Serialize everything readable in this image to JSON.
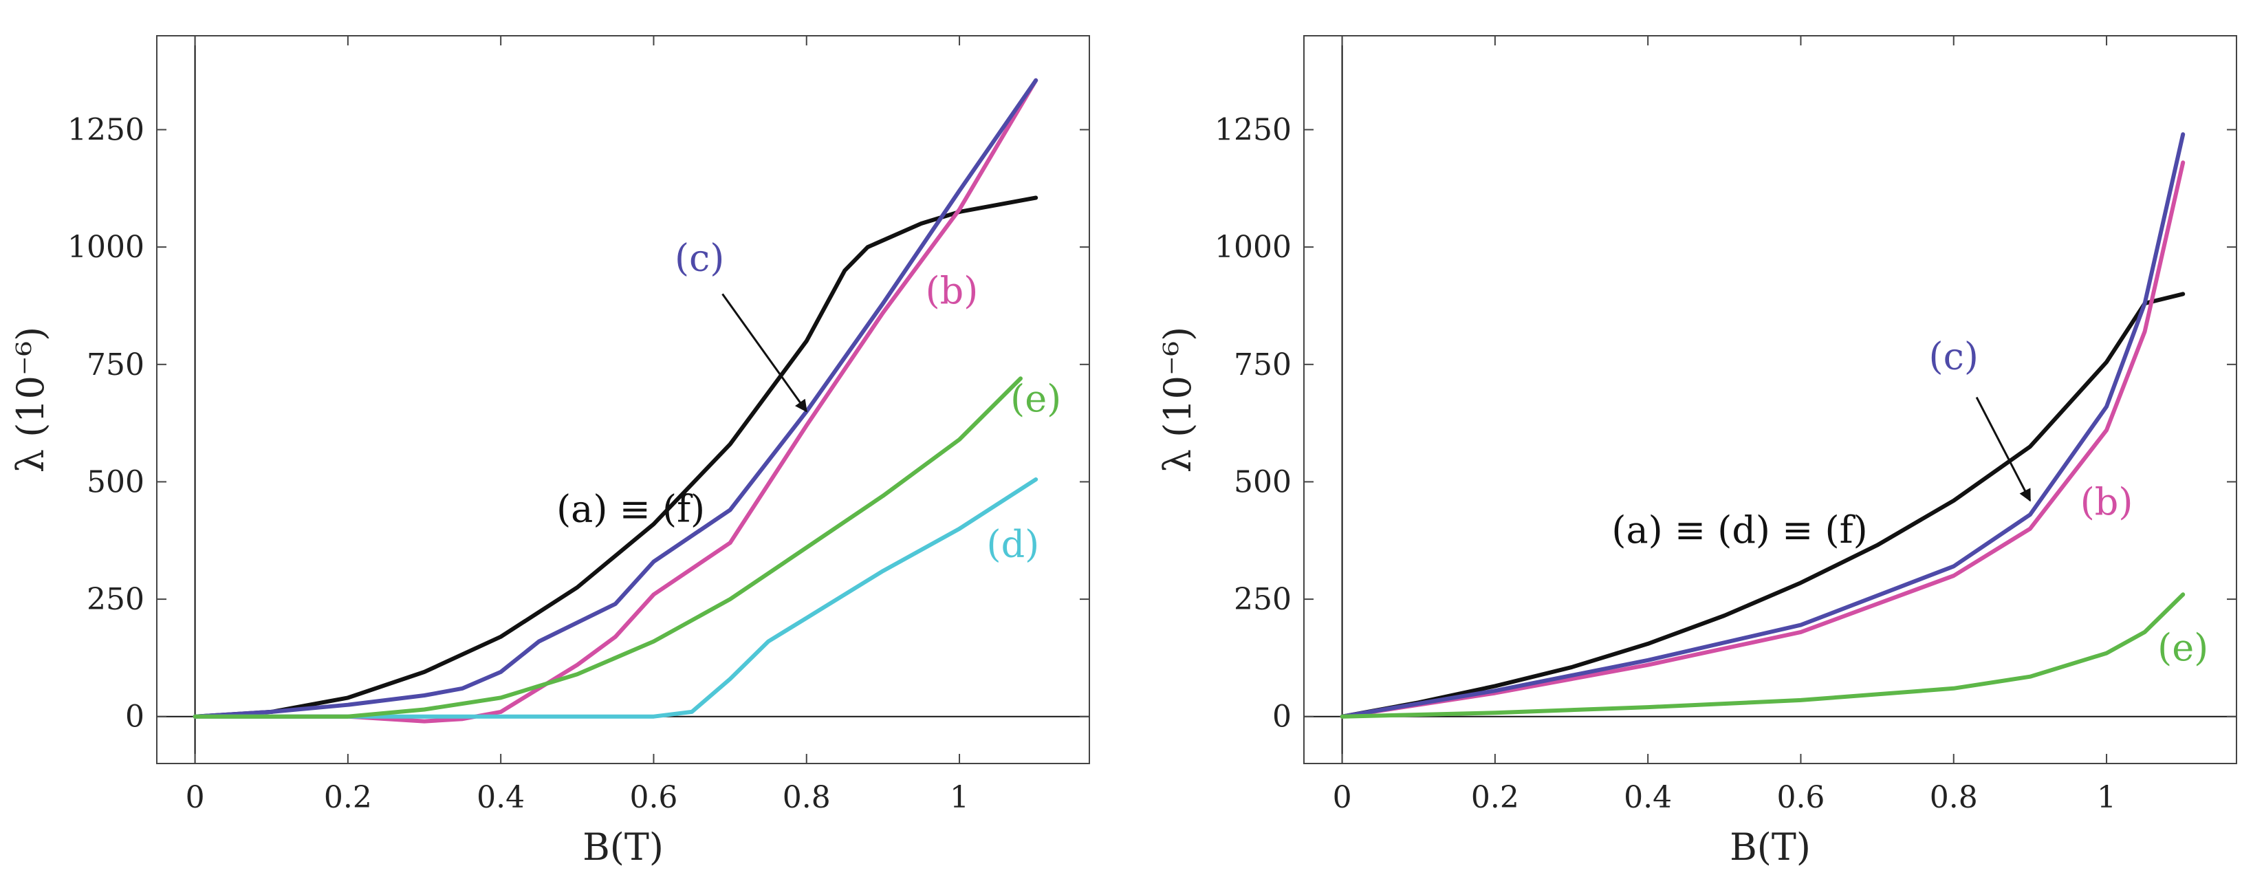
{
  "chart_data": [
    {
      "type": "line",
      "xlabel": "B(T)",
      "ylabel": "λ (10⁻⁶)",
      "xlim": [
        -0.05,
        1.17
      ],
      "ylim": [
        -100,
        1450
      ],
      "xticks": [
        0,
        0.2,
        0.4,
        0.6,
        0.8,
        1
      ],
      "xtick_labels": [
        "0",
        "0.2",
        "0.4",
        "0.6",
        "0.8",
        "1"
      ],
      "yticks": [
        0,
        250,
        500,
        750,
        1000,
        1250
      ],
      "ytick_labels": [
        "0",
        "250",
        "500",
        "750",
        "1000",
        "1250"
      ],
      "grid": false,
      "series": [
        {
          "name": "(a) ≡ (f)",
          "color": "#111111",
          "x": [
            0,
            0.1,
            0.2,
            0.3,
            0.4,
            0.5,
            0.6,
            0.7,
            0.8,
            0.85,
            0.88,
            0.95,
            1.0,
            1.1
          ],
          "y": [
            0,
            10,
            40,
            95,
            170,
            275,
            410,
            580,
            800,
            950,
            1000,
            1050,
            1075,
            1105
          ]
        },
        {
          "name": "(b)",
          "color": "#d24fa3",
          "x": [
            0,
            0.2,
            0.3,
            0.35,
            0.4,
            0.45,
            0.5,
            0.55,
            0.6,
            0.7,
            0.8,
            0.9,
            1.0,
            1.1
          ],
          "y": [
            0,
            0,
            -10,
            -5,
            10,
            60,
            110,
            170,
            260,
            370,
            620,
            860,
            1080,
            1355
          ]
        },
        {
          "name": "(c)",
          "color": "#4e4aa8",
          "x": [
            0,
            0.1,
            0.2,
            0.3,
            0.35,
            0.4,
            0.45,
            0.5,
            0.55,
            0.6,
            0.7,
            0.8,
            0.9,
            1.0,
            1.1
          ],
          "y": [
            0,
            10,
            25,
            45,
            60,
            95,
            160,
            200,
            240,
            330,
            440,
            650,
            880,
            1120,
            1355
          ]
        },
        {
          "name": "(d)",
          "color": "#4fc6d6",
          "x": [
            0,
            0.6,
            0.65,
            0.7,
            0.75,
            0.8,
            0.9,
            1.0,
            1.1
          ],
          "y": [
            0,
            0,
            10,
            80,
            160,
            210,
            310,
            400,
            505
          ]
        },
        {
          "name": "(e)",
          "color": "#5db748",
          "x": [
            0,
            0.2,
            0.3,
            0.4,
            0.5,
            0.6,
            0.7,
            0.8,
            0.9,
            1.0,
            1.08
          ],
          "y": [
            0,
            0,
            15,
            40,
            90,
            160,
            250,
            360,
            470,
            590,
            720
          ]
        }
      ],
      "annotations": [
        {
          "label": "(a) ≡ (f)",
          "x": 0.57,
          "y": 415
        },
        {
          "label": "(b)",
          "x": 0.99,
          "y": 880
        },
        {
          "label": "(c)",
          "x": 0.66,
          "y": 950
        },
        {
          "label": "(d)",
          "x": 1.07,
          "y": 340
        },
        {
          "label": "(e)",
          "x": 1.1,
          "y": 650
        }
      ],
      "arrow": {
        "from": [
          0.69,
          900
        ],
        "to": [
          0.8,
          650
        ]
      }
    },
    {
      "type": "line",
      "xlabel": "B(T)",
      "ylabel": "λ (10⁻⁶)",
      "xlim": [
        -0.05,
        1.17
      ],
      "ylim": [
        -100,
        1450
      ],
      "xticks": [
        0,
        0.2,
        0.4,
        0.6,
        0.8,
        1
      ],
      "xtick_labels": [
        "0",
        "0.2",
        "0.4",
        "0.6",
        "0.8",
        "1"
      ],
      "yticks": [
        0,
        250,
        500,
        750,
        1000,
        1250
      ],
      "ytick_labels": [
        "0",
        "250",
        "500",
        "750",
        "1000",
        "1250"
      ],
      "grid": false,
      "series": [
        {
          "name": "(a) ≡ (d) ≡ (f)",
          "color": "#111111",
          "x": [
            0,
            0.1,
            0.2,
            0.3,
            0.4,
            0.5,
            0.6,
            0.7,
            0.8,
            0.9,
            1.0,
            1.05,
            1.1
          ],
          "y": [
            0,
            30,
            65,
            105,
            155,
            215,
            285,
            365,
            460,
            575,
            755,
            880,
            900
          ]
        },
        {
          "name": "(b)",
          "color": "#d24fa3",
          "x": [
            0,
            0.2,
            0.4,
            0.6,
            0.8,
            0.9,
            1.0,
            1.05,
            1.1
          ],
          "y": [
            0,
            50,
            110,
            180,
            300,
            400,
            610,
            820,
            1180
          ]
        },
        {
          "name": "(c)",
          "color": "#4e4aa8",
          "x": [
            0,
            0.2,
            0.4,
            0.6,
            0.8,
            0.9,
            1.0,
            1.05,
            1.1
          ],
          "y": [
            0,
            55,
            120,
            195,
            320,
            430,
            660,
            880,
            1240
          ]
        },
        {
          "name": "(e)",
          "color": "#5db748",
          "x": [
            0,
            0.2,
            0.4,
            0.6,
            0.8,
            0.9,
            1.0,
            1.05,
            1.1
          ],
          "y": [
            0,
            8,
            20,
            35,
            60,
            85,
            135,
            180,
            260
          ]
        }
      ],
      "annotations": [
        {
          "label": "(a) ≡ (d) ≡ (f)",
          "x": 0.52,
          "y": 370
        },
        {
          "label": "(b)",
          "x": 1.0,
          "y": 430
        },
        {
          "label": "(c)",
          "x": 0.8,
          "y": 740
        },
        {
          "label": "(e)",
          "x": 1.1,
          "y": 120
        }
      ],
      "arrow": {
        "from": [
          0.83,
          680
        ],
        "to": [
          0.9,
          460
        ]
      }
    }
  ]
}
